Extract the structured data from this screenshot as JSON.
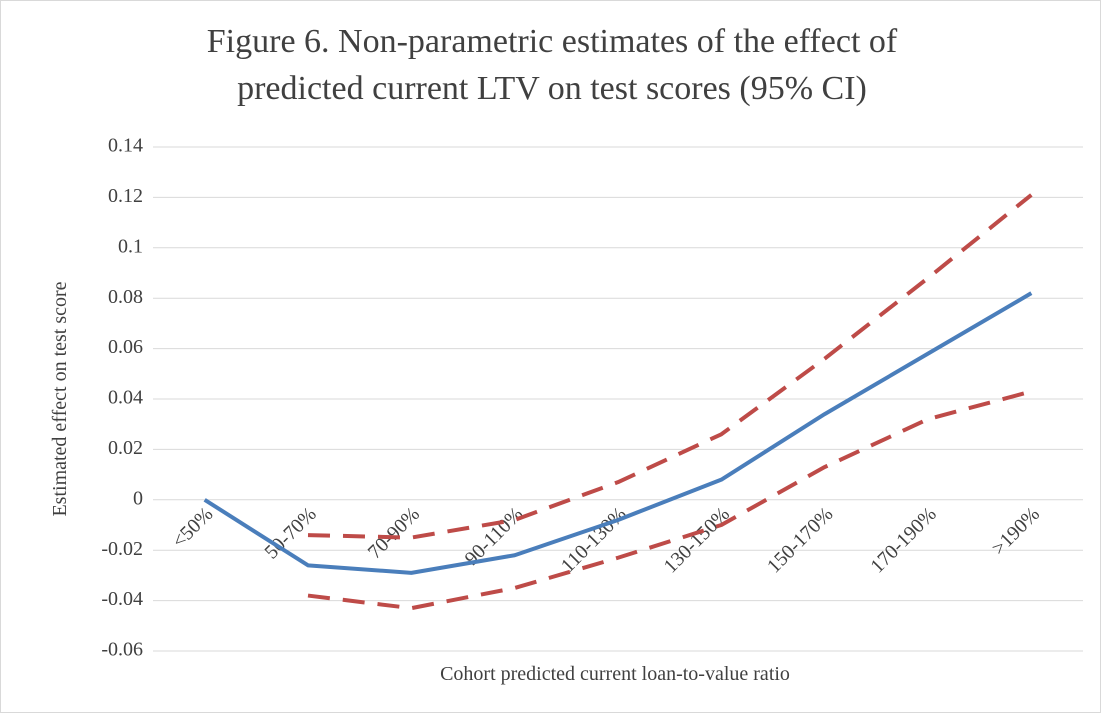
{
  "chart_data": {
    "type": "line",
    "title": [
      "Figure 6. Non-parametric estimates of the effect of",
      "predicted current LTV on test scores (95% CI)"
    ],
    "x_label": "Cohort predicted current loan-to-value ratio",
    "y_label": "Estimated effect on test score",
    "categories": [
      "<50%",
      "50-70%",
      "70-90%",
      "90-110%",
      "110-130%",
      "130-150%",
      "150-170%",
      "170-190%",
      ">190%"
    ],
    "series": [
      {
        "color": "#4a7ebb",
        "dashed": false,
        "values": [
          0,
          -0.026,
          -0.029,
          -0.022,
          -0.008,
          0.008,
          0.034,
          0.058,
          0.082
        ]
      },
      {
        "color": "#be4b48",
        "dashed": true,
        "values": [
          null,
          -0.014,
          -0.015,
          -0.008,
          0.007,
          0.026,
          0.056,
          0.088,
          0.121
        ]
      },
      {
        "color": "#be4b48",
        "dashed": true,
        "values": [
          null,
          -0.038,
          -0.043,
          -0.035,
          -0.023,
          -0.01,
          0.013,
          0.032,
          0.043
        ]
      }
    ],
    "ylim": [
      -0.06,
      0.14
    ],
    "yticks": [
      -0.06,
      -0.04,
      -0.02,
      0,
      0.02,
      0.04,
      0.06,
      0.08,
      0.1,
      0.12,
      0.14
    ],
    "grid": true
  }
}
